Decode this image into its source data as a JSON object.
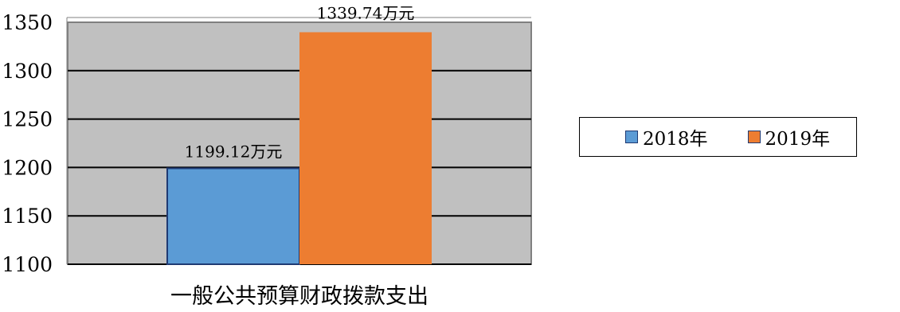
{
  "chart_data": {
    "type": "bar",
    "categories": [
      "一般公共预算财政拨款支出"
    ],
    "series": [
      {
        "name": "2018年",
        "values": [
          1199.12
        ],
        "label": "1199.12万元",
        "color": "#5b9bd5"
      },
      {
        "name": "2019年",
        "values": [
          1339.74
        ],
        "label": "1339.74万元",
        "color": "#ed7d31"
      }
    ],
    "ylim": [
      1100,
      1350
    ],
    "yticks": [
      "1100",
      "1150",
      "1200",
      "1250",
      "1300",
      "1350"
    ],
    "grid": true,
    "plot_background": "#c0c0c0",
    "legend_position": "right"
  }
}
